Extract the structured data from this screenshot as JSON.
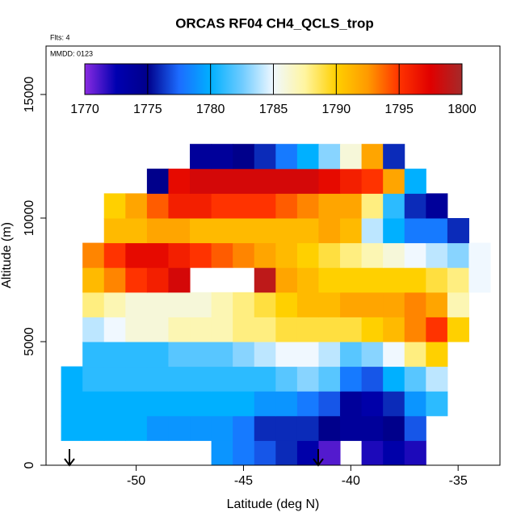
{
  "chart_data": {
    "type": "heatmap",
    "title": "ORCAS RF04 CH4_QCLS_trop",
    "annotations": [
      "Flts: 4",
      "MMDD: 0123"
    ],
    "x_label": "Latitude (deg N)",
    "y_label": "Altitude (m)",
    "xlim": [
      -54.2,
      -33.05
    ],
    "ylim": [
      0,
      16960
    ],
    "xticks": [
      -50,
      -45,
      -40,
      -35
    ],
    "yticks": [
      0,
      5000,
      10000,
      15000
    ],
    "zlim": [
      1770,
      1800
    ],
    "zticks": [
      1770,
      1775,
      1780,
      1785,
      1790,
      1795,
      1800
    ],
    "colorscale": [
      "#8a2be2",
      "#0000b0",
      "#00008b",
      "#1c6cff",
      "#00b0ff",
      "#6ecbff",
      "#f0f8ff",
      "#fff5a0",
      "#ffd000",
      "#ff9a00",
      "#ff3300",
      "#e00000",
      "#a52a2a"
    ],
    "x": [
      -53,
      -52,
      -51,
      -50,
      -49,
      -48,
      -47,
      -46,
      -45,
      -44,
      -43,
      -42,
      -41,
      -40,
      -39,
      -38,
      -37,
      -36,
      -35,
      -34
    ],
    "y": [
      500,
      1500,
      2500,
      3500,
      4500,
      5500,
      6500,
      7500,
      8500,
      9500,
      10500,
      11500,
      12500
    ],
    "z": [
      [
        null,
        null,
        null,
        null,
        null,
        null,
        null,
        1779,
        1778,
        1777,
        1776,
        1773,
        1771,
        null,
        1772,
        1773,
        1772,
        null,
        null,
        null
      ],
      [
        1780,
        1780,
        1780,
        1780,
        1779,
        1779,
        1779,
        1779,
        1778,
        1776,
        1776,
        1776,
        1775,
        1774,
        1774,
        1775,
        1777,
        null,
        null,
        null
      ],
      [
        1780,
        1780,
        1780,
        1780,
        1780,
        1780,
        1780,
        1780,
        1780,
        1779,
        1779,
        1778,
        1777,
        1774,
        1773,
        1776,
        1779,
        1781,
        null,
        null
      ],
      [
        1780,
        1781,
        1781,
        1781,
        1781,
        1781,
        1781,
        1781,
        1781,
        1781,
        1782,
        1783,
        1782,
        1778,
        1777,
        1780,
        1782,
        1784,
        null,
        null
      ],
      [
        null,
        1781,
        1781,
        1781,
        1781,
        1782,
        1782,
        1782,
        1783,
        1784,
        1785,
        1785,
        1784,
        1782,
        1783,
        1785,
        1788,
        1790,
        null,
        null
      ],
      [
        null,
        1784,
        1785,
        1786,
        1786,
        1787,
        1787,
        1787,
        1788,
        1788,
        1789,
        1789,
        1789,
        1789,
        1790,
        1791,
        1793,
        1795,
        1790,
        null
      ],
      [
        null,
        1788,
        1787,
        1786,
        1786,
        1786,
        1786,
        1787,
        1788,
        1789,
        1790,
        1791,
        1791,
        1792,
        1792,
        1792,
        1793,
        1792,
        1787,
        null
      ],
      [
        null,
        1791,
        1793,
        1795,
        1796,
        1798,
        null,
        null,
        null,
        1799,
        1792,
        1791,
        1790,
        1790,
        1790,
        1790,
        1790,
        1789,
        1788,
        1785
      ],
      [
        null,
        1793,
        1795,
        1797,
        1797,
        1796,
        1795,
        1794,
        1793,
        1792,
        1791,
        1790,
        1789,
        1788,
        1787,
        1786,
        1785,
        1784,
        1783,
        1785
      ],
      [
        null,
        null,
        1791,
        1791,
        1792,
        1792,
        1791,
        1791,
        1791,
        1791,
        1791,
        1791,
        1792,
        1791,
        1784,
        1780,
        1778,
        1778,
        1776,
        null
      ],
      [
        null,
        null,
        1790,
        1792,
        1794,
        1796,
        1796,
        1795,
        1795,
        1795,
        1794,
        1793,
        1792,
        1792,
        1788,
        1781,
        1776,
        1774,
        null,
        null
      ],
      [
        null,
        null,
        null,
        null,
        1775,
        1797,
        1798,
        1798,
        1798,
        1798,
        1798,
        1798,
        1797,
        1796,
        1795,
        1792,
        1780,
        null,
        null,
        null
      ],
      [
        null,
        null,
        null,
        null,
        null,
        null,
        1774,
        1774,
        1775,
        1776,
        1778,
        1780,
        1783,
        1786,
        1792,
        1776,
        null,
        null,
        null,
        null
      ]
    ]
  }
}
